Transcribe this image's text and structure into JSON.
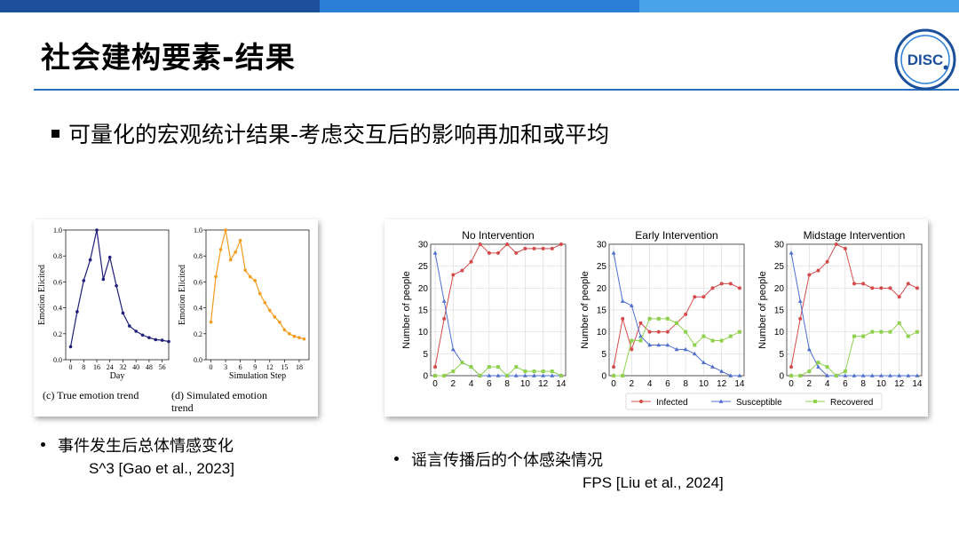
{
  "slide": {
    "title": "社会建构要素-结果",
    "main_bullet": "可量化的宏观统计结果-考虑交互后的影响再加和或平均",
    "topbar_colors": [
      "#1c4f9c",
      "#2c7fd6",
      "#4aa3e8"
    ],
    "accent_color": "#2a6fc0",
    "logo": {
      "icon": "disc-logo-icon",
      "text": "DISC"
    }
  },
  "left_block": {
    "caption_bullet": "事件发生后总体情感变化",
    "reference": "S^3 [Gao et al., 2023]"
  },
  "right_block": {
    "caption_bullet": "谣言传播后的个体感染情况",
    "reference": "FPS [Liu et al., 2024]"
  },
  "chart_data": [
    {
      "type": "line",
      "panel_caption": "(c) True emotion trend",
      "xlabel": "Day",
      "ylabel": "Emotion Elicited",
      "xticks": [
        "0",
        "8",
        "16",
        "24",
        "32",
        "40",
        "48",
        "56"
      ],
      "yticks": [
        "0.0",
        "0.2",
        "0.4",
        "0.6",
        "0.8",
        "1.0"
      ],
      "xlim": [
        -3,
        60
      ],
      "ylim": [
        0,
        1
      ],
      "color": "#1f1f7a",
      "x": [
        0,
        4,
        8,
        12,
        16,
        20,
        24,
        28,
        32,
        36,
        40,
        44,
        48,
        52,
        56,
        60
      ],
      "y": [
        0.1,
        0.37,
        0.61,
        0.77,
        1.0,
        0.62,
        0.79,
        0.57,
        0.36,
        0.26,
        0.22,
        0.19,
        0.17,
        0.155,
        0.15,
        0.14
      ]
    },
    {
      "type": "line",
      "panel_caption": "(d)  Simulated  emotion trend",
      "xlabel": "Simulation Step",
      "ylabel": "Emotion Elicited",
      "xticks": [
        "0",
        "3",
        "6",
        "9",
        "12",
        "15",
        "18"
      ],
      "yticks": [
        "0.0",
        "0.2",
        "0.4",
        "0.6",
        "0.8",
        "1.0"
      ],
      "xlim": [
        -1,
        20
      ],
      "ylim": [
        0,
        1
      ],
      "color": "#f39c1c",
      "x": [
        0,
        1,
        2,
        3,
        4,
        5,
        6,
        7,
        8,
        9,
        10,
        11,
        12,
        13,
        14,
        15,
        16,
        17,
        18,
        19
      ],
      "y": [
        0.29,
        0.64,
        0.85,
        1.0,
        0.77,
        0.83,
        0.92,
        0.69,
        0.64,
        0.61,
        0.51,
        0.44,
        0.38,
        0.33,
        0.29,
        0.23,
        0.2,
        0.18,
        0.17,
        0.16
      ]
    },
    {
      "type": "line",
      "title": "No Intervention",
      "ylabel": "Number of people",
      "xticks": [
        "0",
        "2",
        "4",
        "6",
        "8",
        "10",
        "12",
        "14"
      ],
      "yticks": [
        "0",
        "5",
        "10",
        "15",
        "20",
        "25",
        "30"
      ],
      "xlim": [
        -0.5,
        14.5
      ],
      "ylim": [
        0,
        30
      ],
      "x": [
        0,
        1,
        2,
        3,
        4,
        5,
        6,
        7,
        8,
        9,
        10,
        11,
        12,
        13,
        14
      ],
      "series": [
        {
          "name": "Infected",
          "color": "#d44b4b",
          "marker": "circle",
          "values": [
            2,
            13,
            23,
            24,
            26,
            30,
            28,
            28,
            30,
            28,
            29,
            29,
            29,
            29,
            30
          ]
        },
        {
          "name": "Susceptible",
          "color": "#4f6fcf",
          "marker": "triangle",
          "values": [
            28,
            17,
            6,
            3,
            2,
            0,
            0,
            0,
            0,
            0,
            0,
            0,
            0,
            0,
            0
          ]
        },
        {
          "name": "Recovered",
          "color": "#8fd14f",
          "marker": "square",
          "values": [
            0,
            0,
            1,
            3,
            2,
            0,
            2,
            2,
            0,
            2,
            1,
            1,
            1,
            1,
            0
          ]
        }
      ]
    },
    {
      "type": "line",
      "title": "Early Intervention",
      "ylabel": "Number of people",
      "xticks": [
        "0",
        "2",
        "4",
        "6",
        "8",
        "10",
        "12",
        "14"
      ],
      "yticks": [
        "0",
        "5",
        "10",
        "15",
        "20",
        "25",
        "30"
      ],
      "xlim": [
        -0.5,
        14.5
      ],
      "ylim": [
        0,
        30
      ],
      "x": [
        0,
        1,
        2,
        3,
        4,
        5,
        6,
        7,
        8,
        9,
        10,
        11,
        12,
        13,
        14
      ],
      "series": [
        {
          "name": "Infected",
          "color": "#d44b4b",
          "marker": "circle",
          "values": [
            2,
            13,
            6,
            12,
            10,
            10,
            10,
            12,
            14,
            18,
            18,
            20,
            21,
            21,
            20
          ]
        },
        {
          "name": "Susceptible",
          "color": "#4f6fcf",
          "marker": "triangle",
          "values": [
            28,
            17,
            16,
            9,
            7,
            7,
            7,
            6,
            6,
            5,
            3,
            2,
            1,
            0,
            0
          ]
        },
        {
          "name": "Recovered",
          "color": "#8fd14f",
          "marker": "square",
          "values": [
            0,
            0,
            8,
            8,
            13,
            13,
            13,
            12,
            10,
            7,
            9,
            8,
            8,
            9,
            10
          ]
        }
      ]
    },
    {
      "type": "line",
      "title": "Midstage Intervention",
      "ylabel": "Number of people",
      "xticks": [
        "0",
        "2",
        "4",
        "6",
        "8",
        "10",
        "12",
        "14"
      ],
      "yticks": [
        "0",
        "5",
        "10",
        "15",
        "20",
        "25",
        "30"
      ],
      "xlim": [
        -0.5,
        14.5
      ],
      "ylim": [
        0,
        30
      ],
      "x": [
        0,
        1,
        2,
        3,
        4,
        5,
        6,
        7,
        8,
        9,
        10,
        11,
        12,
        13,
        14
      ],
      "series": [
        {
          "name": "Infected",
          "color": "#d44b4b",
          "marker": "circle",
          "values": [
            2,
            13,
            23,
            24,
            26,
            30,
            29,
            21,
            21,
            20,
            20,
            20,
            18,
            21,
            20
          ]
        },
        {
          "name": "Susceptible",
          "color": "#4f6fcf",
          "marker": "triangle",
          "values": [
            28,
            17,
            6,
            2,
            0,
            0,
            0,
            0,
            0,
            0,
            0,
            0,
            0,
            0,
            0
          ]
        },
        {
          "name": "Recovered",
          "color": "#8fd14f",
          "marker": "square",
          "values": [
            0,
            0,
            1,
            3,
            2,
            0,
            1,
            9,
            9,
            10,
            10,
            10,
            12,
            9,
            10
          ]
        }
      ]
    }
  ],
  "legend": {
    "placement": "bottom-center",
    "items": [
      "Infected",
      "Susceptible",
      "Recovered"
    ]
  }
}
